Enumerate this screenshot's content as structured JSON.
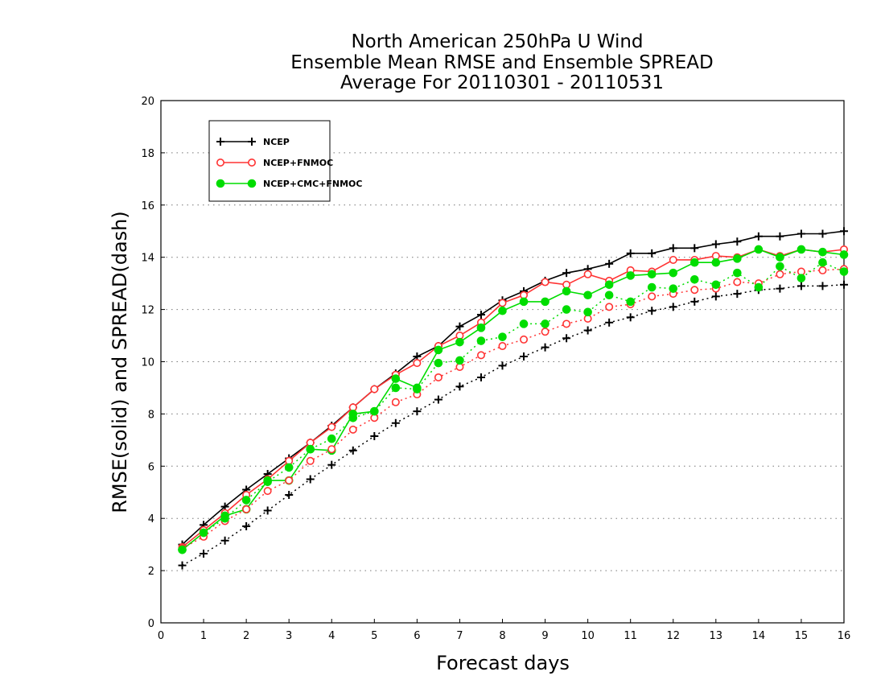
{
  "chart_data": {
    "type": "line",
    "title": [
      "North American 250hPa U Wind",
      "Ensemble Mean RMSE and Ensemble SPREAD",
      "Average For 20110301 - 20110531"
    ],
    "xlabel": "Forecast days",
    "ylabel": "RMSE(solid) and SPREAD(dash)",
    "xlim": [
      0,
      16
    ],
    "ylim": [
      0,
      20
    ],
    "xticks": [
      0,
      1,
      2,
      3,
      4,
      5,
      6,
      7,
      8,
      9,
      10,
      11,
      12,
      13,
      14,
      15,
      16
    ],
    "yticks": [
      0,
      2,
      4,
      6,
      8,
      10,
      12,
      14,
      16,
      18,
      20
    ],
    "grid": "horizontal dotted",
    "legend_position": "top-left",
    "x": [
      0.5,
      1,
      1.5,
      2,
      2.5,
      3,
      3.5,
      4,
      4.5,
      5,
      5.5,
      6,
      6.5,
      7,
      7.5,
      8,
      8.5,
      9,
      9.5,
      10,
      10.5,
      11,
      11.5,
      12,
      12.5,
      13,
      13.5,
      14,
      14.5,
      15,
      15.5,
      16
    ],
    "series": [
      {
        "name": "NCEP",
        "metric": "RMSE",
        "style": "solid",
        "marker": "plus",
        "color": "#000000",
        "values": [
          3.0,
          3.75,
          4.45,
          5.1,
          5.7,
          6.3,
          6.9,
          7.55,
          8.25,
          8.95,
          9.55,
          10.2,
          10.6,
          11.35,
          11.8,
          12.35,
          12.7,
          13.1,
          13.4,
          13.55,
          13.75,
          14.15,
          14.15,
          14.35,
          14.35,
          14.5,
          14.6,
          14.8,
          14.8,
          14.9,
          14.9,
          15.0
        ]
      },
      {
        "name": "NCEP+FNMOC",
        "metric": "RMSE",
        "style": "solid",
        "marker": "open-circle",
        "color": "#ff3333",
        "values": [
          2.9,
          3.55,
          4.2,
          4.9,
          5.5,
          6.2,
          6.9,
          7.5,
          8.25,
          8.95,
          9.5,
          9.95,
          10.6,
          11.0,
          11.5,
          12.25,
          12.55,
          13.05,
          12.95,
          13.35,
          13.1,
          13.5,
          13.45,
          13.9,
          13.9,
          14.05,
          14.0,
          14.3,
          14.05,
          14.3,
          14.2,
          14.3
        ]
      },
      {
        "name": "NCEP+CMC+FNMOC",
        "metric": "RMSE",
        "style": "solid",
        "marker": "filled-circle",
        "color": "#00dd00",
        "values": [
          2.8,
          3.45,
          4.1,
          4.35,
          5.45,
          5.45,
          6.65,
          6.6,
          8.0,
          8.1,
          9.35,
          9.0,
          10.45,
          10.75,
          11.3,
          11.95,
          12.3,
          12.3,
          12.7,
          12.55,
          12.95,
          13.3,
          13.35,
          13.4,
          13.8,
          13.8,
          13.95,
          14.3,
          14.0,
          14.3,
          14.2,
          14.1
        ]
      },
      {
        "name": "NCEP",
        "metric": "SPREAD",
        "style": "dash",
        "marker": "plus",
        "color": "#000000",
        "values": [
          2.2,
          2.65,
          3.15,
          3.7,
          4.3,
          4.9,
          5.5,
          6.05,
          6.6,
          7.15,
          7.65,
          8.1,
          8.55,
          9.05,
          9.4,
          9.85,
          10.2,
          10.55,
          10.9,
          11.2,
          11.5,
          11.7,
          11.95,
          12.1,
          12.3,
          12.5,
          12.6,
          12.75,
          12.8,
          12.9,
          12.9,
          12.95
        ]
      },
      {
        "name": "NCEP+FNMOC",
        "metric": "SPREAD",
        "style": "dash",
        "marker": "open-circle",
        "color": "#ff3333",
        "values": [
          2.85,
          3.3,
          3.9,
          4.35,
          5.05,
          5.45,
          6.2,
          6.65,
          7.4,
          7.85,
          8.45,
          8.75,
          9.4,
          9.8,
          10.25,
          10.6,
          10.85,
          11.15,
          11.45,
          11.65,
          12.1,
          12.2,
          12.5,
          12.6,
          12.75,
          12.8,
          13.05,
          13.0,
          13.35,
          13.45,
          13.5,
          13.55
        ]
      },
      {
        "name": "NCEP+CMC+FNMOC",
        "metric": "SPREAD",
        "style": "dash",
        "marker": "filled-circle",
        "color": "#00dd00",
        "values": [
          2.8,
          3.45,
          4.0,
          4.7,
          5.4,
          5.95,
          6.65,
          7.05,
          7.85,
          8.1,
          9.0,
          8.95,
          9.95,
          10.05,
          10.8,
          10.95,
          11.45,
          11.45,
          12.0,
          11.9,
          12.55,
          12.3,
          12.85,
          12.8,
          13.15,
          12.95,
          13.4,
          12.85,
          13.65,
          13.2,
          13.8,
          13.45
        ]
      }
    ],
    "legend": [
      {
        "label": "NCEP",
        "marker": "plus",
        "color": "#000000"
      },
      {
        "label": "NCEP+FNMOC",
        "marker": "open-circle",
        "color": "#ff3333"
      },
      {
        "label": "NCEP+CMC+FNMOC",
        "marker": "filled-circle",
        "color": "#00dd00"
      }
    ]
  }
}
